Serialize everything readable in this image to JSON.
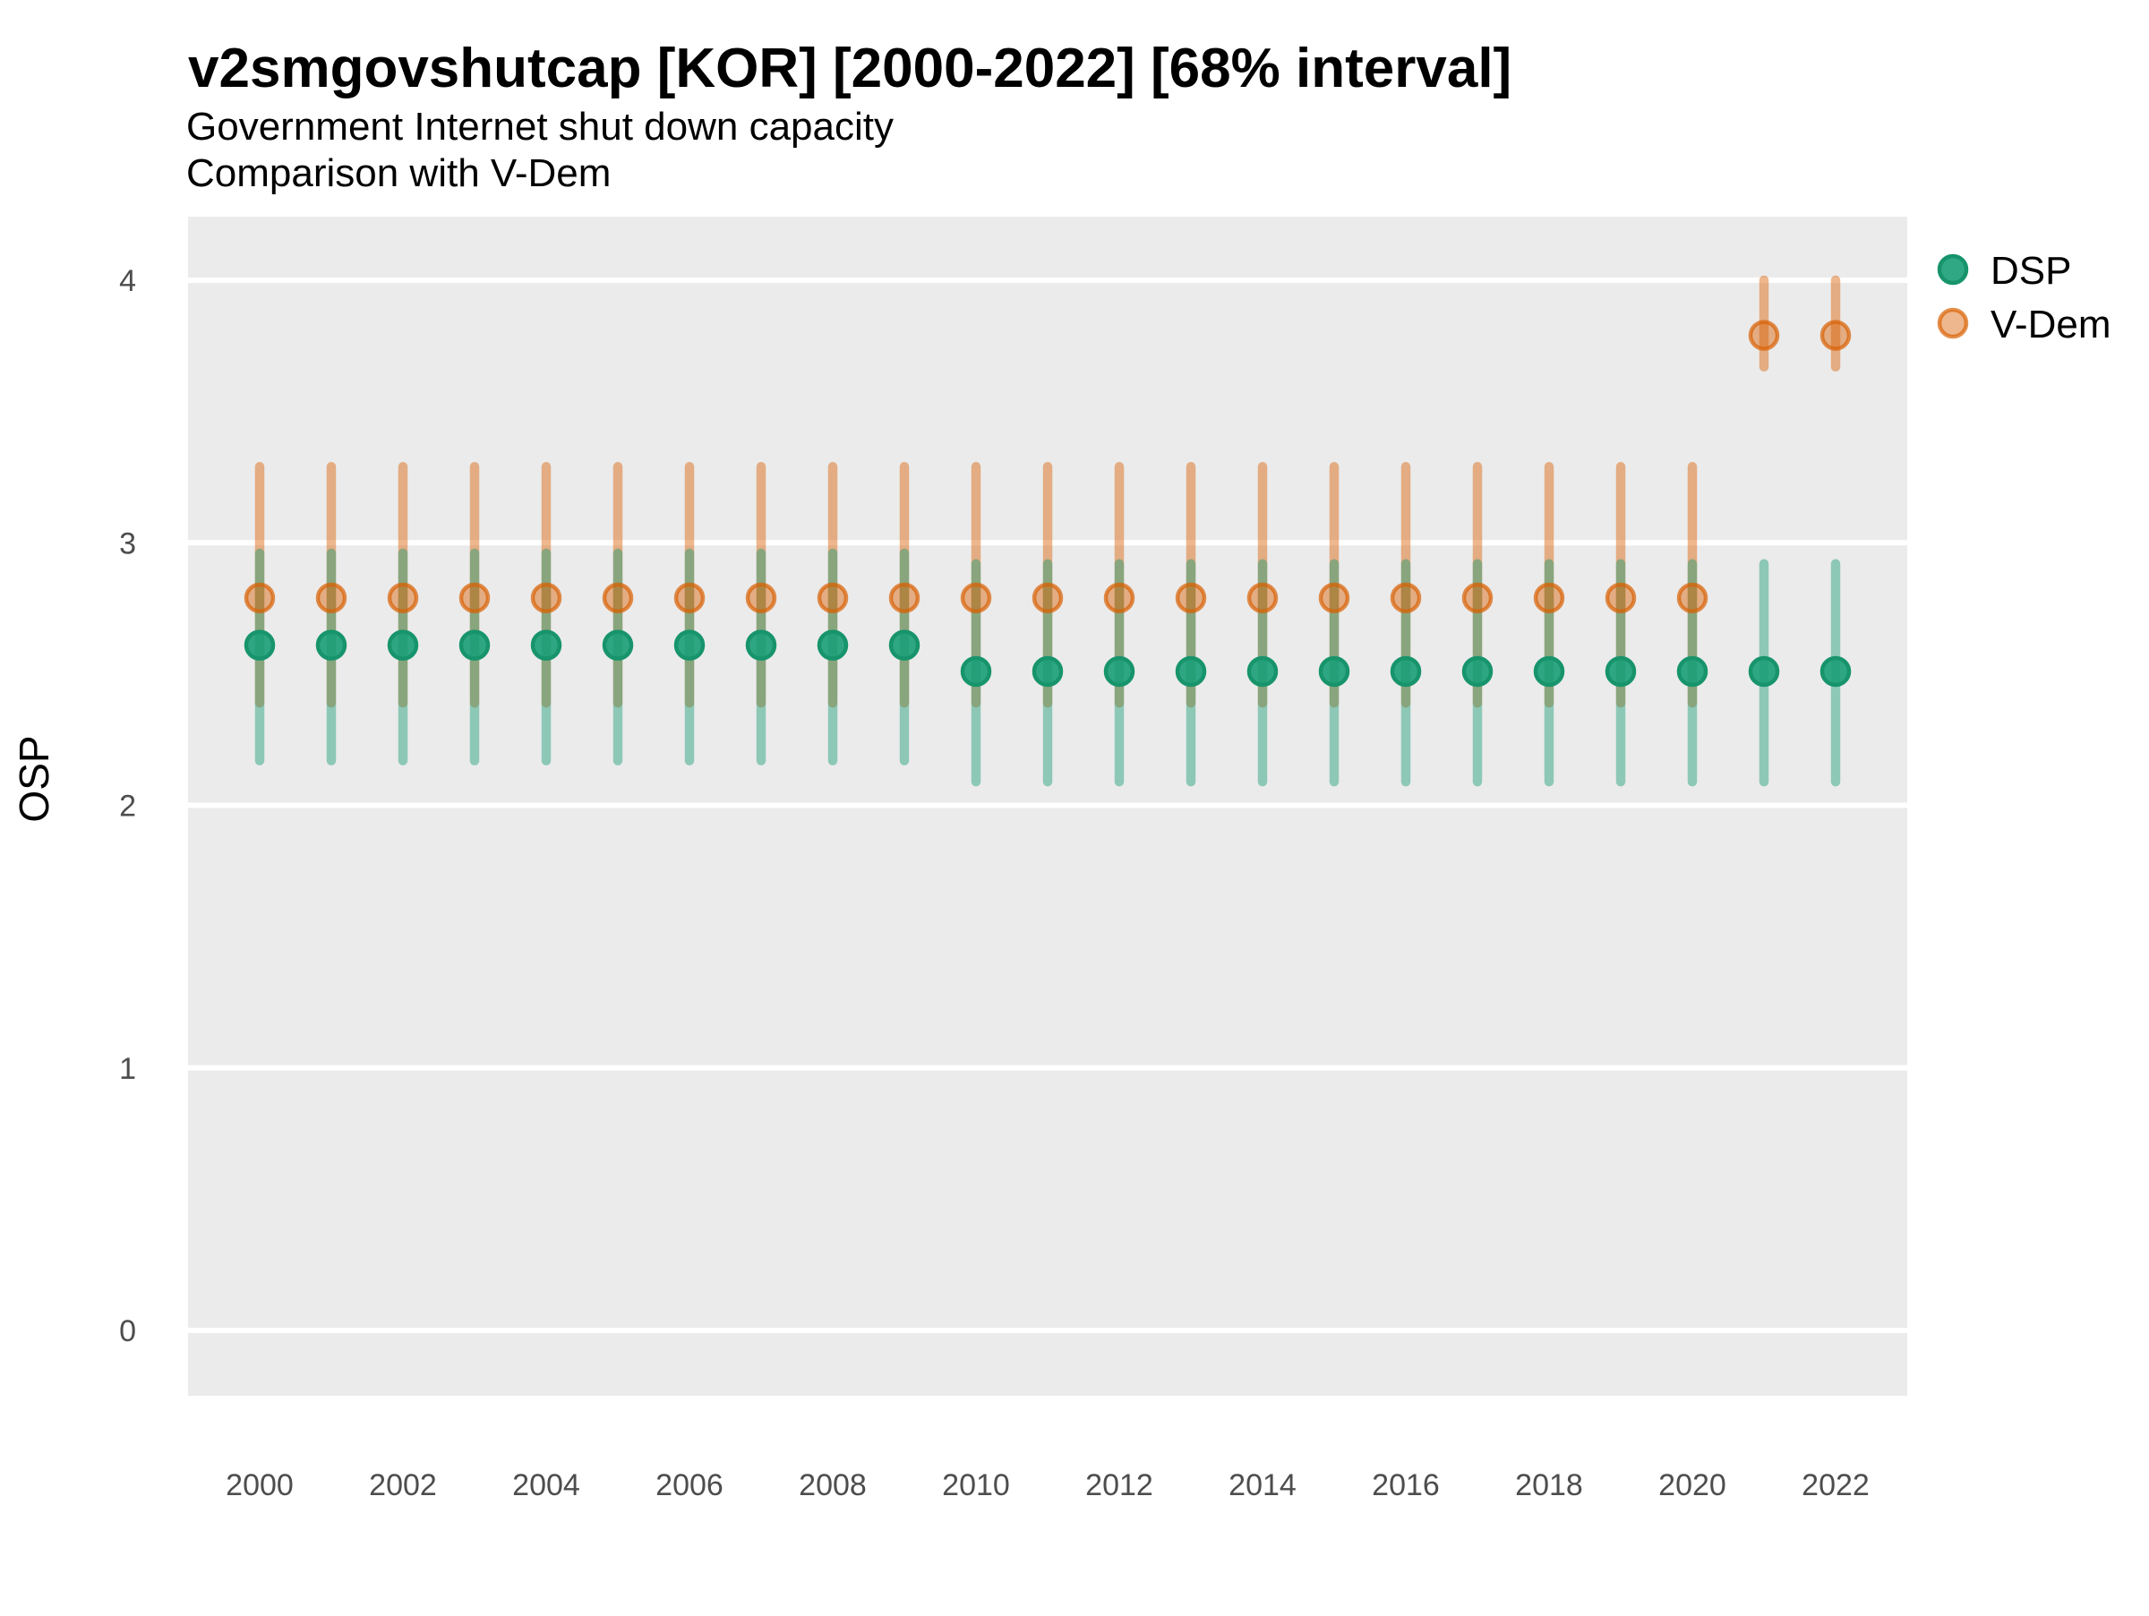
{
  "header": {
    "title": "v2smgovshutcap [KOR] [2000-2022] [68% interval]",
    "subtitle1": "Government Internet shut down capacity",
    "subtitle2": "Comparison with V-Dem"
  },
  "y_axis": {
    "label": "OSP",
    "ticks": [
      0,
      1,
      2,
      3,
      4
    ]
  },
  "x_axis": {
    "ticks": [
      2000,
      2002,
      2004,
      2006,
      2008,
      2010,
      2012,
      2014,
      2016,
      2018,
      2020,
      2022
    ]
  },
  "legend": {
    "items": [
      {
        "label": "DSP",
        "color": "#1B9E77"
      },
      {
        "label": "V-Dem",
        "color": "#D95F02"
      }
    ]
  },
  "colors": {
    "panel_bg": "#EBEBEB",
    "gridline": "#FFFFFF",
    "dsp": "#1B9E77",
    "vdem": "#D95F02",
    "dsp_bar": "rgba(27,158,119,0.45)",
    "vdem_bar": "rgba(217,95,2,0.45)",
    "dsp_point_fill": "rgba(27,158,119,0.9)",
    "dsp_point_stroke": "#17946B",
    "vdem_point_fill": "rgba(217,95,2,0.45)",
    "vdem_point_stroke": "rgba(217,95,2,0.7)",
    "tick_text": "#4d4d4d"
  },
  "chart_data": {
    "type": "pointrange",
    "title": "v2smgovshutcap [KOR] [2000-2022] [68% interval]",
    "xlabel": "",
    "ylabel": "OSP",
    "ylim": [
      0,
      4
    ],
    "interval": "68%",
    "grid": "horizontal-major-only",
    "legend_position": "right",
    "x": [
      2000,
      2001,
      2002,
      2003,
      2004,
      2005,
      2006,
      2007,
      2008,
      2009,
      2010,
      2011,
      2012,
      2013,
      2014,
      2015,
      2016,
      2017,
      2018,
      2019,
      2020,
      2021,
      2022
    ],
    "series": [
      {
        "name": "DSP",
        "color": "#1B9E77",
        "points": [
          {
            "year": 2000,
            "value": 2.61,
            "lo": 2.17,
            "hi": 2.96
          },
          {
            "year": 2001,
            "value": 2.61,
            "lo": 2.17,
            "hi": 2.96
          },
          {
            "year": 2002,
            "value": 2.61,
            "lo": 2.17,
            "hi": 2.96
          },
          {
            "year": 2003,
            "value": 2.61,
            "lo": 2.17,
            "hi": 2.96
          },
          {
            "year": 2004,
            "value": 2.61,
            "lo": 2.17,
            "hi": 2.96
          },
          {
            "year": 2005,
            "value": 2.61,
            "lo": 2.17,
            "hi": 2.96
          },
          {
            "year": 2006,
            "value": 2.61,
            "lo": 2.17,
            "hi": 2.96
          },
          {
            "year": 2007,
            "value": 2.61,
            "lo": 2.17,
            "hi": 2.96
          },
          {
            "year": 2008,
            "value": 2.61,
            "lo": 2.17,
            "hi": 2.96
          },
          {
            "year": 2009,
            "value": 2.61,
            "lo": 2.17,
            "hi": 2.96
          },
          {
            "year": 2010,
            "value": 2.51,
            "lo": 2.09,
            "hi": 2.92
          },
          {
            "year": 2011,
            "value": 2.51,
            "lo": 2.09,
            "hi": 2.92
          },
          {
            "year": 2012,
            "value": 2.51,
            "lo": 2.09,
            "hi": 2.92
          },
          {
            "year": 2013,
            "value": 2.51,
            "lo": 2.09,
            "hi": 2.92
          },
          {
            "year": 2014,
            "value": 2.51,
            "lo": 2.09,
            "hi": 2.92
          },
          {
            "year": 2015,
            "value": 2.51,
            "lo": 2.09,
            "hi": 2.92
          },
          {
            "year": 2016,
            "value": 2.51,
            "lo": 2.09,
            "hi": 2.92
          },
          {
            "year": 2017,
            "value": 2.51,
            "lo": 2.09,
            "hi": 2.92
          },
          {
            "year": 2018,
            "value": 2.51,
            "lo": 2.09,
            "hi": 2.92
          },
          {
            "year": 2019,
            "value": 2.51,
            "lo": 2.09,
            "hi": 2.92
          },
          {
            "year": 2020,
            "value": 2.51,
            "lo": 2.09,
            "hi": 2.92
          },
          {
            "year": 2021,
            "value": 2.51,
            "lo": 2.09,
            "hi": 2.92
          },
          {
            "year": 2022,
            "value": 2.51,
            "lo": 2.09,
            "hi": 2.92
          }
        ]
      },
      {
        "name": "V-Dem",
        "color": "#D95F02",
        "points": [
          {
            "year": 2000,
            "value": 2.79,
            "lo": 2.39,
            "hi": 3.29
          },
          {
            "year": 2001,
            "value": 2.79,
            "lo": 2.39,
            "hi": 3.29
          },
          {
            "year": 2002,
            "value": 2.79,
            "lo": 2.39,
            "hi": 3.29
          },
          {
            "year": 2003,
            "value": 2.79,
            "lo": 2.39,
            "hi": 3.29
          },
          {
            "year": 2004,
            "value": 2.79,
            "lo": 2.39,
            "hi": 3.29
          },
          {
            "year": 2005,
            "value": 2.79,
            "lo": 2.39,
            "hi": 3.29
          },
          {
            "year": 2006,
            "value": 2.79,
            "lo": 2.39,
            "hi": 3.29
          },
          {
            "year": 2007,
            "value": 2.79,
            "lo": 2.39,
            "hi": 3.29
          },
          {
            "year": 2008,
            "value": 2.79,
            "lo": 2.39,
            "hi": 3.29
          },
          {
            "year": 2009,
            "value": 2.79,
            "lo": 2.39,
            "hi": 3.29
          },
          {
            "year": 2010,
            "value": 2.79,
            "lo": 2.39,
            "hi": 3.29
          },
          {
            "year": 2011,
            "value": 2.79,
            "lo": 2.39,
            "hi": 3.29
          },
          {
            "year": 2012,
            "value": 2.79,
            "lo": 2.39,
            "hi": 3.29
          },
          {
            "year": 2013,
            "value": 2.79,
            "lo": 2.39,
            "hi": 3.29
          },
          {
            "year": 2014,
            "value": 2.79,
            "lo": 2.39,
            "hi": 3.29
          },
          {
            "year": 2015,
            "value": 2.79,
            "lo": 2.39,
            "hi": 3.29
          },
          {
            "year": 2016,
            "value": 2.79,
            "lo": 2.39,
            "hi": 3.29
          },
          {
            "year": 2017,
            "value": 2.79,
            "lo": 2.39,
            "hi": 3.29
          },
          {
            "year": 2018,
            "value": 2.79,
            "lo": 2.39,
            "hi": 3.29
          },
          {
            "year": 2019,
            "value": 2.79,
            "lo": 2.39,
            "hi": 3.29
          },
          {
            "year": 2020,
            "value": 2.79,
            "lo": 2.39,
            "hi": 3.29
          },
          {
            "year": 2021,
            "value": 3.79,
            "lo": 3.67,
            "hi": 4.0
          },
          {
            "year": 2022,
            "value": 3.79,
            "lo": 3.67,
            "hi": 4.0
          }
        ]
      }
    ]
  }
}
